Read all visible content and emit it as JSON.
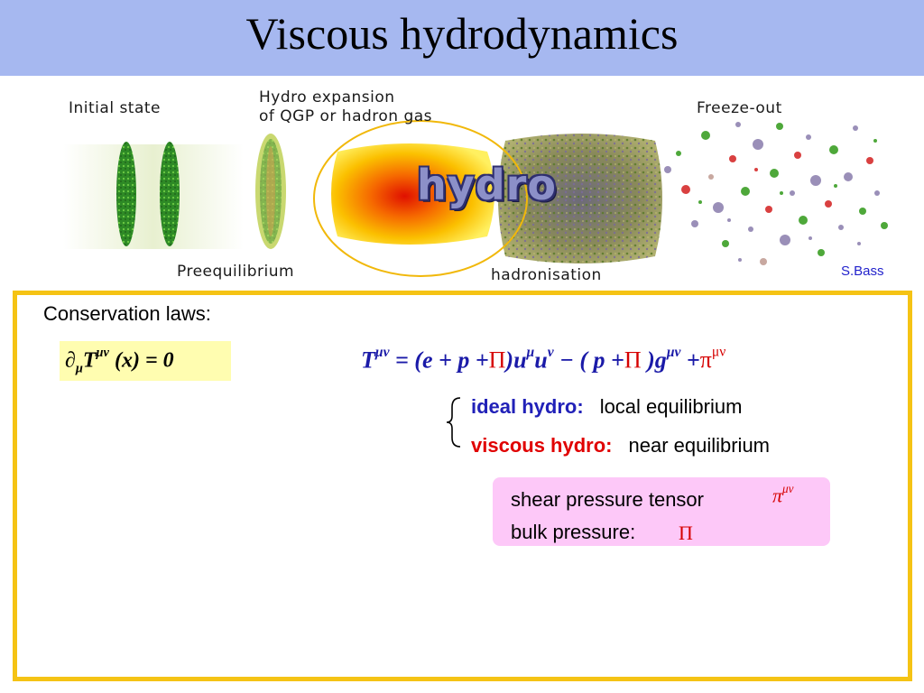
{
  "slide": {
    "title": "Viscous hydrodynamics"
  },
  "figure": {
    "labels": {
      "initial_state": "Initial state",
      "hydro_expansion_line1": "Hydro expansion",
      "hydro_expansion_line2": "of QGP or hadron gas",
      "freeze_out": "Freeze-out",
      "preequilibrium": "Preequilibrium",
      "hadronisation": "hadronisation",
      "hydro_word": "hydro"
    },
    "credit": "S.Bass"
  },
  "content": {
    "conservation_label": "Conservation laws:",
    "regimes": [
      {
        "label": "ideal hydro:",
        "description": "local equilibrium",
        "color": "#2121b8"
      },
      {
        "label": "viscous hydro:",
        "description": "near equilibrium",
        "color": "#e00000"
      }
    ],
    "notes": {
      "shear": "shear pressure tensor",
      "bulk": "bulk pressure:"
    }
  },
  "colors": {
    "title_bar": "#a6b8f0",
    "panel_border": "#f5c314",
    "equation_box": "#fffdb0",
    "note_box": "#fdc8f8"
  }
}
